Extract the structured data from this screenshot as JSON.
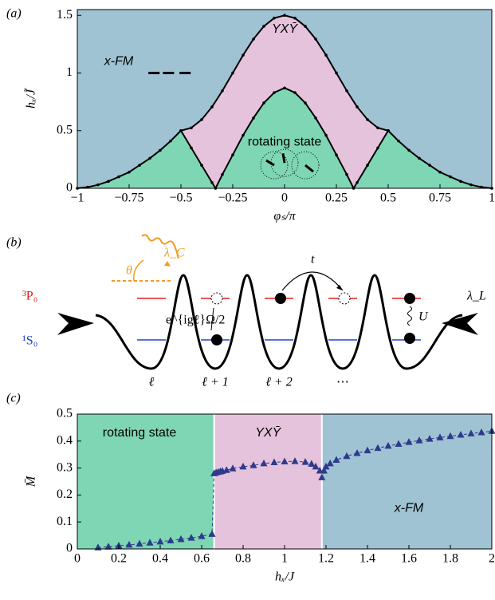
{
  "chart_data": [
    {
      "type": "phase",
      "panel_label": "(a)",
      "x_label": "φₛ/π",
      "y_label": "hₓ/J̃",
      "xlim": [
        -1,
        1
      ],
      "ylim": [
        0,
        1.55
      ],
      "xticks": [
        {
          "value": -1,
          "label": "−1"
        },
        {
          "value": -0.75,
          "label": "−0.75"
        },
        {
          "value": -0.5,
          "label": "−0.5"
        },
        {
          "value": -0.25,
          "label": "−0.25"
        },
        0,
        0.25,
        0.5,
        0.75,
        1
      ],
      "yticks": [
        0,
        0.5,
        1,
        1.5
      ],
      "regions": [
        {
          "label": "x-FM",
          "color": "#9fc3d3"
        },
        {
          "label": "YXȲ",
          "color": "#e6c3dc"
        },
        {
          "label": "rotating state",
          "color": "#7fd6b4"
        }
      ],
      "series": [
        {
          "color": "#000000",
          "x": [
            -0.5,
            -0.45,
            -0.4,
            -0.35,
            -0.3,
            -0.25,
            -0.2,
            -0.15,
            -0.1,
            -0.05,
            0,
            0.05,
            0.1,
            0.15,
            0.2,
            0.25,
            0.3,
            0.35,
            0.4,
            0.45,
            0.5
          ],
          "values": [
            0.5,
            0.524,
            0.596,
            0.706,
            0.846,
            1.0,
            1.155,
            1.294,
            1.405,
            1.476,
            1.5,
            1.476,
            1.405,
            1.294,
            1.155,
            1.0,
            0.846,
            0.706,
            0.596,
            0.524,
            0.5
          ]
        },
        {
          "color": "#000000",
          "x": [
            -1,
            -0.95,
            -0.9,
            -0.85,
            -0.8,
            -0.75,
            -0.7,
            -0.65,
            -0.6,
            -0.55,
            -0.5
          ],
          "values": [
            0,
            0.01,
            0.03,
            0.06,
            0.1,
            0.14,
            0.2,
            0.26,
            0.33,
            0.41,
            0.5
          ]
        },
        {
          "color": "#000000",
          "x": [
            -0.5,
            -0.45,
            -0.4,
            -0.35,
            -0.333,
            -0.3,
            -0.25,
            -0.2,
            -0.15,
            -0.1,
            -0.05,
            0,
            0.05,
            0.1,
            0.15,
            0.2,
            0.25,
            0.3,
            0.333,
            0.35,
            0.4,
            0.45,
            0.5
          ],
          "values": [
            0.5,
            0.35,
            0.2,
            0.05,
            0,
            0.12,
            0.29,
            0.46,
            0.61,
            0.74,
            0.83,
            0.87,
            0.83,
            0.74,
            0.61,
            0.46,
            0.29,
            0.12,
            0,
            0.05,
            0.2,
            0.35,
            0.5
          ]
        },
        {
          "color": "#000000",
          "x": [
            0.5,
            0.55,
            0.6,
            0.65,
            0.7,
            0.75,
            0.8,
            0.85,
            0.9,
            0.95,
            1
          ],
          "values": [
            0.5,
            0.41,
            0.33,
            0.26,
            0.2,
            0.14,
            0.1,
            0.06,
            0.03,
            0.01,
            0
          ]
        }
      ]
    },
    {
      "type": "line",
      "panel_label": "(c)",
      "x_label": "hₓ/J",
      "y_label": "M̄",
      "xlim": [
        0,
        2
      ],
      "ylim": [
        0,
        0.5
      ],
      "xticks": [
        0,
        0.2,
        0.4,
        0.6,
        0.8,
        1,
        1.2,
        1.4,
        1.6,
        1.8,
        2
      ],
      "yticks": [
        0,
        0.1,
        0.2,
        0.3,
        0.4,
        0.5
      ],
      "regions": [
        {
          "label": "rotating state",
          "color": "#7fd6b4"
        },
        {
          "label": "YXȲ",
          "color": "#e6c3dc"
        },
        {
          "label": "x-FM",
          "color": "#9fc3d3"
        }
      ],
      "boundaries": [
        0.66,
        1.18
      ],
      "series": [
        {
          "color": "#2e3a8c",
          "x": [
            0.1,
            0.15,
            0.2,
            0.25,
            0.3,
            0.35,
            0.4,
            0.45,
            0.5,
            0.55,
            0.6,
            0.65,
            0.66,
            0.67,
            0.68,
            0.69,
            0.7,
            0.72,
            0.75,
            0.8,
            0.85,
            0.9,
            0.95,
            1.0,
            1.05,
            1.1,
            1.13,
            1.15,
            1.17,
            1.18,
            1.19,
            1.2,
            1.22,
            1.25,
            1.3,
            1.35,
            1.4,
            1.45,
            1.5,
            1.55,
            1.6,
            1.65,
            1.7,
            1.75,
            1.8,
            1.85,
            1.9,
            1.95,
            2.0
          ],
          "values": [
            0.005,
            0.008,
            0.012,
            0.015,
            0.019,
            0.023,
            0.027,
            0.031,
            0.036,
            0.041,
            0.047,
            0.055,
            0.28,
            0.283,
            0.285,
            0.287,
            0.289,
            0.292,
            0.298,
            0.305,
            0.31,
            0.317,
            0.321,
            0.324,
            0.325,
            0.322,
            0.315,
            0.305,
            0.29,
            0.265,
            0.29,
            0.305,
            0.317,
            0.33,
            0.344,
            0.355,
            0.365,
            0.374,
            0.382,
            0.389,
            0.396,
            0.402,
            0.408,
            0.413,
            0.418,
            0.423,
            0.428,
            0.432,
            0.437
          ]
        }
      ]
    }
  ],
  "diagram": {
    "panel_label": "(b)",
    "angle": "θ",
    "clock_laser": "λ_C",
    "excited": "³P₀",
    "ground": "¹S₀",
    "tunneling": "t",
    "interaction": "U",
    "lattice_laser": "λ_L",
    "coupling": "e^{igℓ}Ω/2",
    "sites": [
      "ℓ",
      "ℓ + 1",
      "ℓ + 2",
      "⋯"
    ]
  }
}
